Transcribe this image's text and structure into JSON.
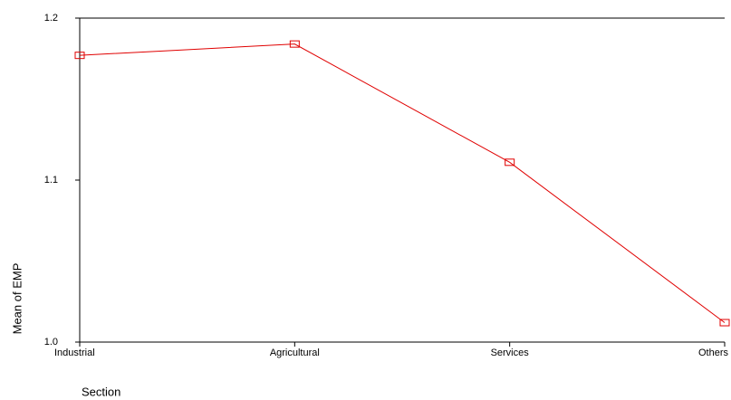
{
  "chart_data": {
    "type": "line",
    "x_label": "Section",
    "y_label": "Mean of EMP",
    "categories": [
      "Industrial",
      "Agricultural",
      "Services",
      "Others"
    ],
    "values": [
      1.177,
      1.184,
      1.111,
      1.012
    ],
    "color": "#e00000",
    "ylim": [
      1.0,
      1.2
    ],
    "yticks": [
      {
        "value": 1.0,
        "label": "1.0"
      },
      1.1,
      1.2
    ]
  }
}
